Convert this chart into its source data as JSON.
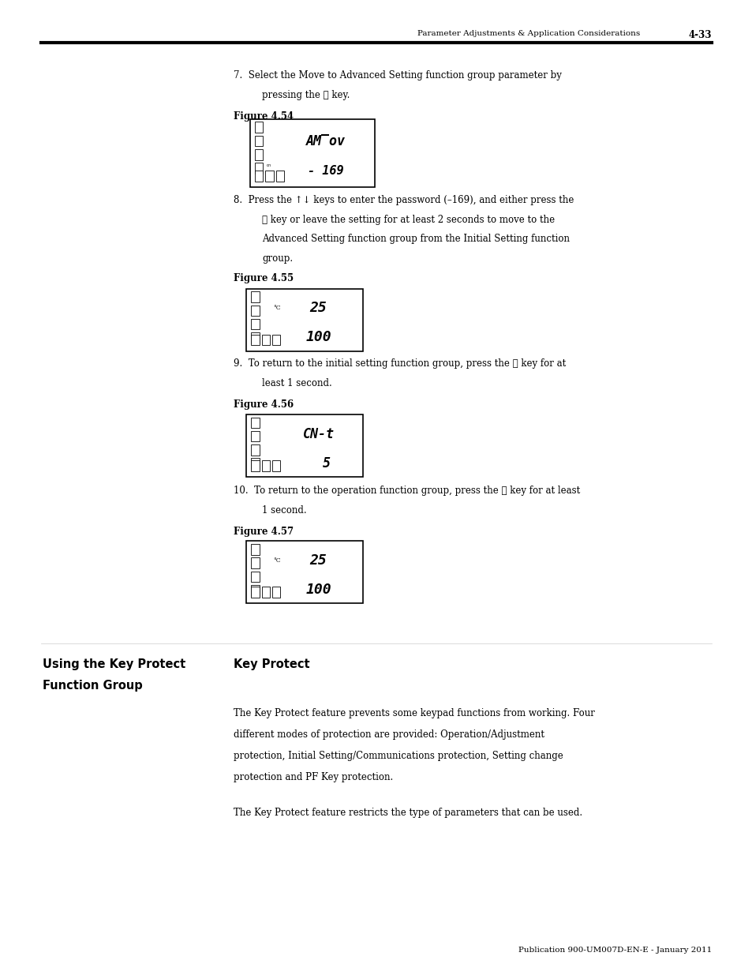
{
  "page_width": 9.54,
  "page_height": 12.35,
  "bg_color": "#ffffff",
  "header_text": "Parameter Adjustments & Application Considerations",
  "header_page": "4-33",
  "footer_text": "Publication 900-UM007D-EN-E - January 2011",
  "step7_line1": "7.  Select the Move to Advanced Setting function group parameter by",
  "step7_line2": "pressing the ⓢ key.",
  "fig54_label": "Figure 4.54",
  "fig55_label": "Figure 4.55",
  "fig56_label": "Figure 4.56",
  "fig57_label": "Figure 4.57",
  "step8_line1": "8.  Press the ↑↓ keys to enter the password (–169), and either press the",
  "step8_line2": "ⓢ key or leave the setting for at least 2 seconds to move to the",
  "step8_line3": "Advanced Setting function group from the Initial Setting function",
  "step8_line4": "group.",
  "step9_line1": "9.  To return to the initial setting function group, press the ⓞ key for at",
  "step9_line2": "least 1 second.",
  "step10_line1": "10.  To return to the operation function group, press the ⓞ key for at least",
  "step10_line2": "1 second.",
  "section_title_left1": "Using the Key Protect",
  "section_title_left2": "Function Group",
  "section_title_right": "Key Protect",
  "body_para1_l1": "The Key Protect feature prevents some keypad functions from working. Four",
  "body_para1_l2": "different modes of protection are provided: Operation/Adjustment",
  "body_para1_l3": "protection, Initial Setting/Communications protection, Setting change",
  "body_para1_l4": "protection and PF Key protection.",
  "body_para2": "The Key Protect feature restricts the type of parameters that can be used."
}
